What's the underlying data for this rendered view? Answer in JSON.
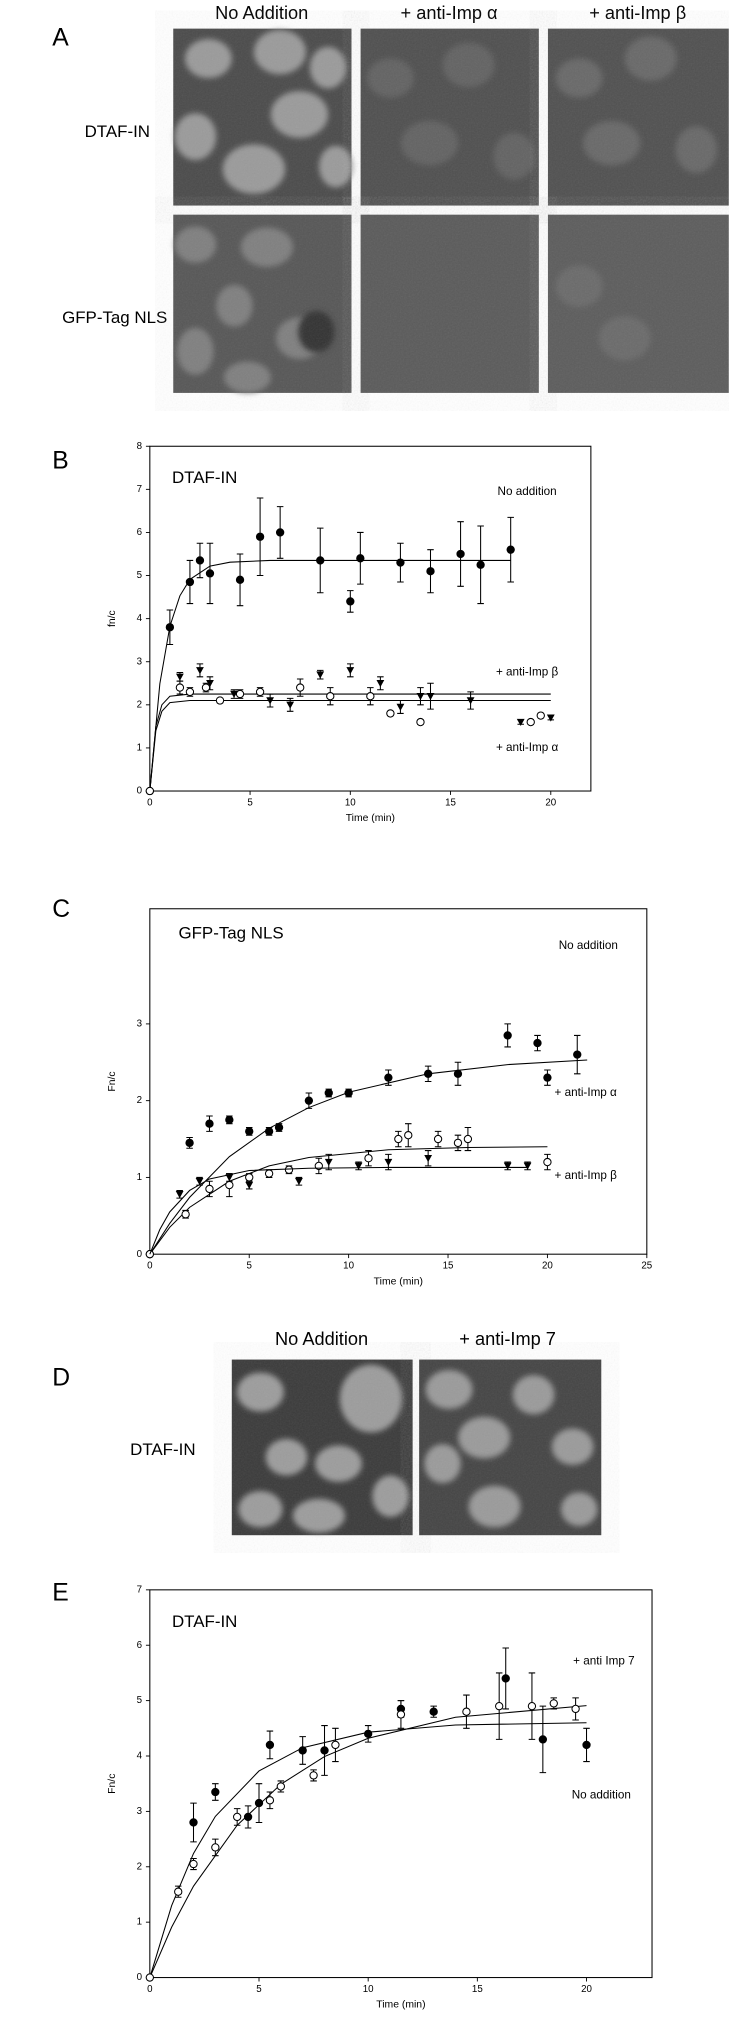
{
  "panel_a": {
    "letter": "A",
    "columns": [
      "No Addition",
      "+ anti-Imp α",
      "+ anti-Imp β"
    ],
    "rows": [
      "DTAF-IN",
      "GFP-Tag NLS"
    ]
  },
  "panel_d": {
    "letter": "D",
    "columns": [
      "No Addition",
      "+ anti-Imp 7"
    ],
    "rows": [
      "DTAF-IN"
    ]
  },
  "chart_data": [
    {
      "type": "scatter",
      "letter": "B",
      "title": "DTAF-IN",
      "xlabel": "Time (min)",
      "ylabel": "fn/c",
      "xlim": [
        0,
        22
      ],
      "ylim": [
        0,
        8
      ],
      "xticks": [
        0,
        5,
        10,
        15,
        20
      ],
      "yticks": [
        0,
        1,
        2,
        3,
        4,
        5,
        6,
        7,
        8
      ],
      "series": [
        {
          "name": "No addition",
          "marker": "filled-circle",
          "color": "#000000",
          "x": [
            0,
            1,
            2,
            2.5,
            3,
            4.5,
            5.5,
            6.5,
            8.5,
            10,
            10.5,
            12.5,
            14,
            15.5,
            16.5,
            18
          ],
          "values": [
            0,
            3.8,
            4.85,
            5.35,
            5.05,
            4.9,
            5.9,
            6,
            5.35,
            4.4,
            5.4,
            5.3,
            5.1,
            5.5,
            5.25,
            5.6
          ],
          "errors": [
            null,
            0.4,
            0.5,
            0.4,
            0.7,
            0.6,
            0.9,
            0.6,
            0.75,
            0.25,
            0.6,
            0.45,
            0.5,
            0.75,
            0.9,
            0.75
          ],
          "fit_x": [
            0,
            0.5,
            1,
            1.5,
            2,
            3,
            4,
            6,
            10,
            18
          ],
          "fit_values": [
            0,
            2.49,
            3.82,
            4.53,
            4.91,
            5.22,
            5.31,
            5.35,
            5.35,
            5.35
          ]
        },
        {
          "name": "+ anti-Imp β",
          "marker": "triangle",
          "color": "#000000",
          "x": [
            1.5,
            2.5,
            3,
            4.2,
            6,
            7,
            8.5,
            10,
            11.5,
            12.5,
            13.5,
            14,
            16,
            18.5,
            20
          ],
          "values": [
            2.65,
            2.8,
            2.5,
            2.25,
            2.1,
            2,
            2.7,
            2.8,
            2.5,
            1.95,
            2.2,
            2.2,
            2.1,
            1.6,
            1.7
          ],
          "errors": [
            0.1,
            0.15,
            0.15,
            0.1,
            0.15,
            0.15,
            0.1,
            0.15,
            0.15,
            0.15,
            0.2,
            0.3,
            0.2,
            0.05,
            0.05
          ],
          "fit_x": [
            0,
            0.3,
            0.6,
            1,
            2,
            20
          ],
          "fit_values": [
            0,
            1.5,
            2,
            2.2,
            2.25,
            2.25
          ]
        },
        {
          "name": "+ anti-Imp α",
          "marker": "open-circle",
          "color": "#000000",
          "x": [
            0,
            1.5,
            2,
            2.8,
            3.5,
            4.5,
            5.5,
            7.5,
            9,
            11,
            12,
            13.5,
            19,
            19.5
          ],
          "values": [
            0,
            2.4,
            2.3,
            2.4,
            2.1,
            2.25,
            2.3,
            2.4,
            2.2,
            2.2,
            1.8,
            1.6,
            1.6,
            1.75
          ],
          "errors": [
            null,
            0.15,
            0.1,
            0.1,
            0.05,
            0.1,
            0.1,
            0.2,
            0.2,
            0.2,
            0.05,
            0.05,
            0.05,
            0.05
          ],
          "fit_x": [
            0,
            0.3,
            0.6,
            1,
            2,
            20
          ],
          "fit_values": [
            0,
            1.4,
            1.85,
            2.05,
            2.1,
            2.1
          ]
        }
      ]
    },
    {
      "type": "scatter",
      "letter": "C",
      "title": "GFP-Tag NLS",
      "xlabel": "Time (min)",
      "ylabel": "Fn/c",
      "xlim": [
        0,
        25
      ],
      "ylim": [
        0,
        4.5
      ],
      "xticks": [
        0,
        5,
        10,
        15,
        20,
        25
      ],
      "yticks": [
        0,
        1,
        2,
        3
      ],
      "series": [
        {
          "name": "No addition",
          "marker": "filled-circle",
          "color": "#000000",
          "x": [
            0,
            2,
            3,
            4,
            5,
            6,
            6.5,
            8,
            9,
            10,
            12,
            14,
            15.5,
            18,
            19.5,
            20,
            21.5
          ],
          "values": [
            0,
            1.45,
            1.7,
            1.75,
            1.6,
            1.6,
            1.65,
            2,
            2.1,
            2.1,
            2.3,
            2.35,
            2.35,
            2.85,
            2.75,
            2.3,
            2.6
          ],
          "errors": [
            null,
            0.07,
            0.1,
            0.05,
            0.05,
            0.05,
            0.05,
            0.1,
            0.05,
            0.05,
            0.1,
            0.1,
            0.15,
            0.15,
            0.1,
            0.1,
            0.25
          ],
          "fit_x": [
            0,
            1,
            2,
            4,
            6,
            8,
            10,
            14,
            18,
            22
          ],
          "fit_values": [
            0,
            0.4,
            0.74,
            1.27,
            1.64,
            1.91,
            2.11,
            2.35,
            2.47,
            2.53
          ]
        },
        {
          "name": "+ anti-Imp α",
          "marker": "open-circle",
          "color": "#000000",
          "x": [
            0,
            1.8,
            3,
            4,
            5,
            6,
            7,
            8.5,
            11,
            12.5,
            13,
            14.5,
            15.5,
            16,
            20
          ],
          "values": [
            0,
            0.52,
            0.85,
            0.9,
            1,
            1.05,
            1.1,
            1.15,
            1.25,
            1.5,
            1.55,
            1.5,
            1.45,
            1.5,
            1.2
          ],
          "errors": [
            null,
            0.05,
            0.1,
            0.15,
            0.05,
            0.05,
            0.05,
            0.1,
            0.1,
            0.1,
            0.15,
            0.1,
            0.1,
            0.15,
            0.1
          ],
          "fit_x": [
            0,
            1,
            2,
            4,
            6,
            8,
            12,
            16,
            20
          ],
          "fit_values": [
            0,
            0.35,
            0.61,
            0.95,
            1.15,
            1.26,
            1.36,
            1.39,
            1.4
          ]
        },
        {
          "name": "+ anti-Imp β",
          "marker": "triangle",
          "color": "#000000",
          "x": [
            1.5,
            2.5,
            4,
            5,
            7.5,
            9,
            10.5,
            12,
            14,
            18,
            19
          ],
          "values": [
            0.78,
            0.95,
            1,
            0.9,
            0.95,
            1.2,
            1.15,
            1.2,
            1.25,
            1.15,
            1.15
          ],
          "errors": [
            0.05,
            0.05,
            0.05,
            0.05,
            0.05,
            0.1,
            0.05,
            0.1,
            0.1,
            0.05,
            0.05
          ],
          "fit_x": [
            0,
            0.5,
            1,
            2,
            3,
            5,
            8,
            12,
            19
          ],
          "fit_values": [
            0,
            0.32,
            0.55,
            0.83,
            0.98,
            1.09,
            1.12,
            1.13,
            1.13
          ]
        }
      ]
    },
    {
      "type": "scatter",
      "letter": "E",
      "title": "DTAF-IN",
      "xlabel": "Time (min)",
      "ylabel": "Fn/c",
      "xlim": [
        0,
        23
      ],
      "ylim": [
        0,
        7
      ],
      "xticks": [
        0,
        5,
        10,
        15,
        20
      ],
      "yticks": [
        0,
        1,
        2,
        3,
        4,
        5,
        6,
        7
      ],
      "series": [
        {
          "name": "No addition",
          "marker": "filled-circle",
          "color": "#000000",
          "x": [
            2,
            3,
            4.5,
            5,
            5.5,
            7,
            8,
            10,
            11.5,
            13,
            16.3,
            18,
            20
          ],
          "values": [
            2.8,
            3.35,
            2.9,
            3.15,
            4.2,
            4.1,
            4.1,
            4.4,
            4.85,
            4.8,
            5.4,
            4.3,
            4.2
          ],
          "errors": [
            0.35,
            0.15,
            0.2,
            0.35,
            0.25,
            0.25,
            0.45,
            0.15,
            0.15,
            0.1,
            0.55,
            0.6,
            0.3
          ],
          "fit_x": [
            0,
            1,
            2,
            3,
            5,
            7,
            10,
            14,
            20
          ],
          "fit_values": [
            0,
            1.3,
            2.24,
            2.91,
            3.73,
            4.15,
            4.43,
            4.56,
            4.6
          ]
        },
        {
          "name": "+ anti Imp 7",
          "marker": "open-circle",
          "color": "#000000",
          "x": [
            0,
            1.3,
            2,
            3,
            4,
            5.5,
            6,
            7.5,
            8.5,
            11.5,
            14.5,
            16,
            17.5,
            18.5,
            19.5
          ],
          "values": [
            0,
            1.55,
            2.05,
            2.35,
            2.9,
            3.2,
            3.45,
            3.65,
            4.2,
            4.75,
            4.8,
            4.9,
            4.9,
            4.95,
            4.85
          ],
          "errors": [
            null,
            0.1,
            0.1,
            0.15,
            0.15,
            0.15,
            0.1,
            0.1,
            0.3,
            0.25,
            0.3,
            0.6,
            0.6,
            0.1,
            0.2
          ],
          "fit_x": [
            0,
            1,
            2,
            4,
            6,
            8,
            10,
            14,
            20
          ],
          "fit_values": [
            0,
            0.91,
            1.65,
            2.75,
            3.49,
            3.99,
            4.32,
            4.7,
            4.91
          ]
        }
      ]
    }
  ]
}
